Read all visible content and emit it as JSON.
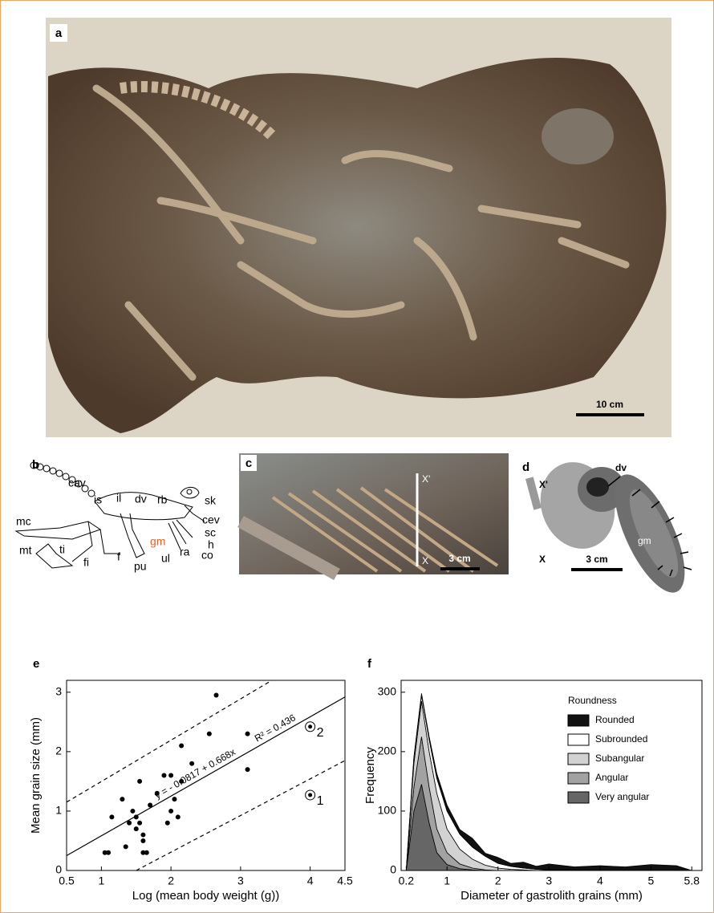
{
  "panel_a": {
    "label": "a",
    "scale_bar": "10 cm"
  },
  "panel_b": {
    "label": "b",
    "parts": {
      "cav": "cav",
      "is": "is",
      "il": "il",
      "dv": "dv",
      "rb": "rb",
      "sk": "sk",
      "cev": "cev",
      "sc": "sc",
      "h": "h",
      "co": "co",
      "ra": "ra",
      "ul": "ul",
      "gm": "gm",
      "pu": "pu",
      "f": "f",
      "fi": "fi",
      "ti": "ti",
      "mt": "mt",
      "mc": "mc"
    }
  },
  "panel_c": {
    "label": "c",
    "top": "X'",
    "bottom": "X",
    "scale_bar": "3 cm"
  },
  "panel_d": {
    "label": "d",
    "top": "X'",
    "bottom": "X",
    "dv": "dv",
    "gm": "gm",
    "scale_bar": "3 cm"
  },
  "chart_data": [
    {
      "type": "scatter",
      "label": "e",
      "xlabel": "Log (mean body weight (g))",
      "ylabel": "Mean grain size (mm)",
      "xlim": [
        0.5,
        4.5
      ],
      "ylim": [
        0,
        3.2
      ],
      "xticks": [
        0.5,
        1,
        2,
        3,
        4,
        4.5
      ],
      "yticks": [
        0,
        1,
        2,
        3
      ],
      "x": [
        1.05,
        1.1,
        1.15,
        1.3,
        1.35,
        1.4,
        1.45,
        1.5,
        1.5,
        1.55,
        1.6,
        1.6,
        1.6,
        1.55,
        1.65,
        1.7,
        1.8,
        1.9,
        1.95,
        2.0,
        2.0,
        2.05,
        2.1,
        2.15,
        2.15,
        2.3,
        2.55,
        2.65,
        3.1,
        3.1
      ],
      "values": [
        0.3,
        0.3,
        0.9,
        1.2,
        0.4,
        0.8,
        1.0,
        0.7,
        0.9,
        0.8,
        0.5,
        0.3,
        0.6,
        1.5,
        0.3,
        1.1,
        1.3,
        1.6,
        0.8,
        1.6,
        1.0,
        1.2,
        0.9,
        2.1,
        1.5,
        1.8,
        2.3,
        2.95,
        2.3,
        1.7
      ],
      "labeled_points": [
        {
          "x": 4,
          "y": 2.42,
          "label": "2"
        },
        {
          "x": 4,
          "y": 1.27,
          "label": "1"
        }
      ],
      "fit": {
        "x": [
          0.5,
          4.5
        ],
        "values": [
          0.25,
          2.92
        ]
      },
      "upper_bound": {
        "x": [
          0.5,
          3.45
        ],
        "values": [
          1.15,
          3.2
        ]
      },
      "lower_bound": {
        "x": [
          1.5,
          4.5
        ],
        "values": [
          0,
          1.85
        ]
      },
      "equation": "y = - 0.0817 + 0.668x",
      "r_squared": "R² = 0.436"
    },
    {
      "type": "area",
      "label": "f",
      "xlabel": "Diameter of gastrolith grains (mm)",
      "ylabel": "Frequency",
      "xlim": [
        0.1,
        6.0
      ],
      "ylim": [
        0,
        320
      ],
      "xticks": [
        0.2,
        1,
        2,
        3,
        4,
        5,
        5.8
      ],
      "yticks": [
        0,
        100,
        200,
        300
      ],
      "legend_title": "Roundness",
      "x": [
        0.2,
        0.35,
        0.5,
        0.65,
        0.8,
        1.0,
        1.25,
        1.5,
        1.75,
        2.0,
        2.25,
        2.5,
        2.75,
        3.0,
        3.5,
        4.0,
        4.5,
        5.0,
        5.5,
        5.8
      ],
      "series": [
        {
          "name": "Rounded",
          "color": "#111111",
          "values": [
            0,
            0,
            3,
            5,
            8,
            10,
            8,
            15,
            5,
            10,
            5,
            10,
            5,
            10,
            5,
            8,
            6,
            10,
            8,
            0
          ]
        },
        {
          "name": "Subrounded",
          "color": "#ffffff",
          "values": [
            0,
            10,
            10,
            20,
            25,
            30,
            25,
            20,
            15,
            8,
            5,
            3,
            2,
            1,
            1,
            0,
            0,
            0,
            0,
            0
          ]
        },
        {
          "name": "Subangular",
          "color": "#d2d2d2",
          "values": [
            0,
            40,
            60,
            60,
            60,
            40,
            25,
            15,
            8,
            4,
            2,
            1,
            0,
            0,
            0,
            0,
            0,
            0,
            0,
            0
          ]
        },
        {
          "name": "Angular",
          "color": "#a2a2a2",
          "values": [
            0,
            40,
            80,
            60,
            40,
            20,
            8,
            3,
            1,
            0,
            0,
            0,
            0,
            0,
            0,
            0,
            0,
            0,
            0,
            0
          ]
        },
        {
          "name": "Very angular",
          "color": "#666666",
          "values": [
            0,
            100,
            145,
            80,
            30,
            10,
            3,
            1,
            0,
            0,
            0,
            0,
            0,
            0,
            0,
            0,
            0,
            0,
            0,
            0
          ]
        }
      ]
    }
  ]
}
